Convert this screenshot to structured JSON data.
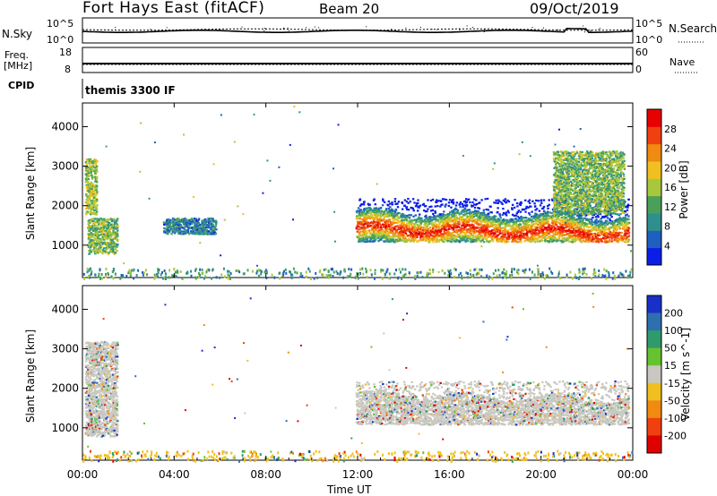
{
  "header": {
    "station": "Fort Hays East (fitACF)",
    "beam": "Beam 20",
    "date": "09/Oct/2019"
  },
  "noise_panel": {
    "left_label": "N.Sky",
    "right_label": "N.Search",
    "left_ticks": [
      "10^5",
      "10^0"
    ],
    "right_ticks": [
      "10^5",
      "10^0"
    ]
  },
  "freq_panel": {
    "label_line1": "Freq.",
    "label_line2": "[MHz]",
    "left_ticks": [
      "18",
      "8"
    ],
    "right_ticks": [
      "60",
      "0"
    ],
    "right_label": "Nave"
  },
  "cpid": {
    "label": "CPID",
    "value": "themis 3300 IF"
  },
  "chart_data": [
    {
      "type": "heatmap",
      "name": "power",
      "ylabel": "Slant Range [km]",
      "xlabel": "Time UT",
      "x_ticks": [
        "00:00",
        "04:00",
        "08:00",
        "12:00",
        "16:00",
        "20:00",
        "00:00"
      ],
      "x_range_hours": [
        0,
        24
      ],
      "y_ticks": [
        1000,
        2000,
        3000,
        4000
      ],
      "ylim": [
        180,
        4600
      ],
      "colorbar": {
        "label": "Power [dB]",
        "ticks": [
          4,
          8,
          12,
          16,
          20,
          24,
          28
        ],
        "range": [
          0,
          32
        ],
        "colors": [
          "#0a1ee8",
          "#1f5fbf",
          "#2f8f8f",
          "#4aa05a",
          "#a8c83c",
          "#f0c020",
          "#f08a10",
          "#f04010",
          "#e80000"
        ]
      },
      "echo_regions": [
        {
          "t0": 0.1,
          "t1": 0.6,
          "r0": 1800,
          "r1": 3200,
          "power": 16
        },
        {
          "t0": 0.2,
          "t1": 1.5,
          "r0": 800,
          "r1": 1700,
          "power": 14
        },
        {
          "t0": 3.5,
          "t1": 5.8,
          "r0": 1300,
          "r1": 1700,
          "power": 8
        },
        {
          "t0": 11.9,
          "t1": 23.8,
          "r0": 1100,
          "r1": 2200,
          "power": 24
        },
        {
          "t0": 20.5,
          "t1": 23.6,
          "r0": 1800,
          "r1": 3400,
          "power": 14
        }
      ]
    },
    {
      "type": "heatmap",
      "name": "velocity",
      "ylabel": "Slant Range [km]",
      "xlabel": "Time UT",
      "x_ticks": [
        "00:00",
        "04:00",
        "08:00",
        "12:00",
        "16:00",
        "20:00",
        "00:00"
      ],
      "x_range_hours": [
        0,
        24
      ],
      "y_ticks": [
        1000,
        2000,
        3000,
        4000
      ],
      "ylim": [
        180,
        4600
      ],
      "colorbar": {
        "label": "Velocity [m s^-1]",
        "ticks": [
          200,
          100,
          50,
          15,
          -15,
          -50,
          -100,
          -200
        ],
        "colors": [
          "#1830c8",
          "#2e6fb0",
          "#2f9a6a",
          "#66c22e",
          "#c8c8c0",
          "#f0c020",
          "#f08a10",
          "#f04010",
          "#e00000"
        ]
      },
      "echo_regions": [
        {
          "t0": 0.1,
          "t1": 1.5,
          "r0": 800,
          "r1": 3200,
          "velocity": 0
        },
        {
          "t0": 11.9,
          "t1": 23.8,
          "r0": 1100,
          "r1": 2200,
          "velocity": 0
        }
      ]
    }
  ]
}
